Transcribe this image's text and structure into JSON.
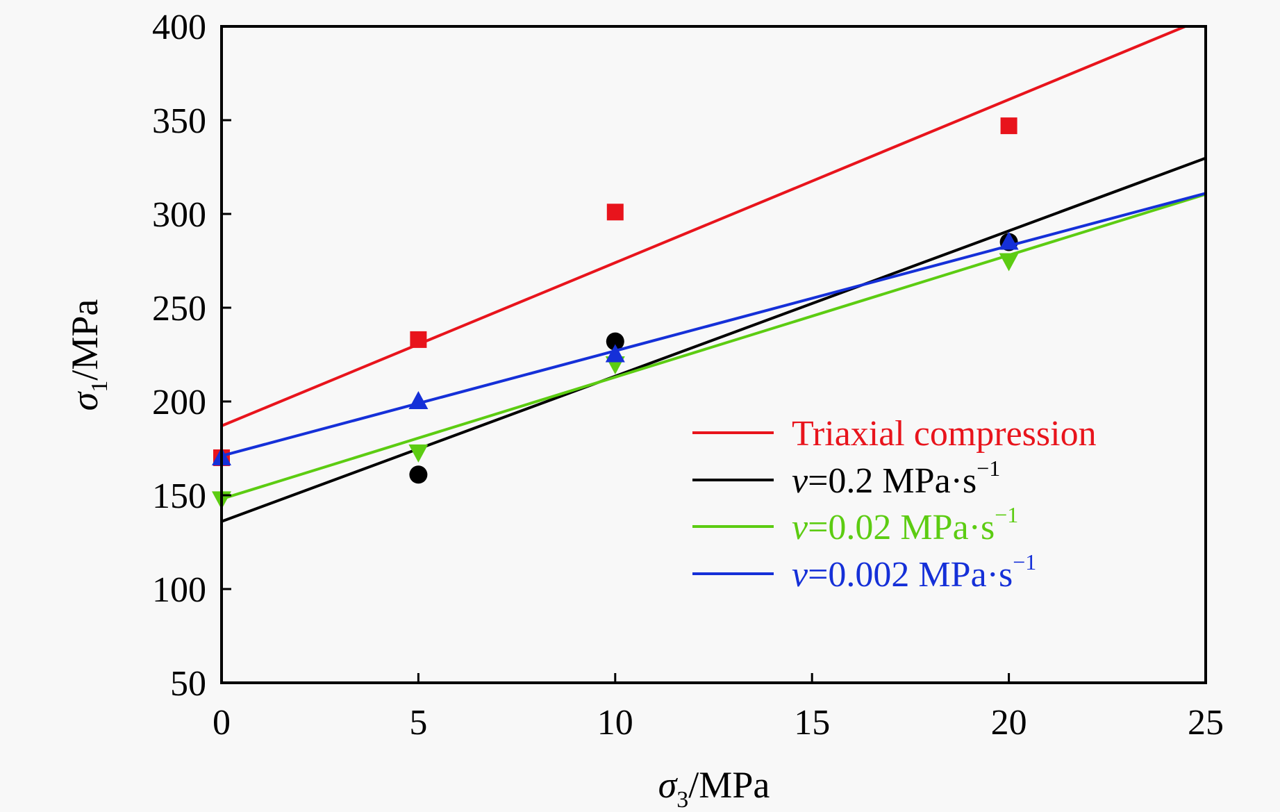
{
  "chart_data": {
    "type": "scatter",
    "title": "",
    "xlabel": {
      "symbol": "σ",
      "sub": "3",
      "unit": "/MPa"
    },
    "ylabel": {
      "symbol": "σ",
      "sub": "1",
      "unit": "/MPa"
    },
    "xlim": [
      0,
      25
    ],
    "ylim": [
      50,
      400
    ],
    "xticks": [
      0,
      5,
      10,
      15,
      20,
      25
    ],
    "yticks": [
      50,
      100,
      150,
      200,
      250,
      300,
      350,
      400
    ],
    "grid": false,
    "legend_position": "center-right",
    "series": [
      {
        "name": "Triaxial compression",
        "prefix": "",
        "value": "",
        "unit": "",
        "color": "#e8141c",
        "marker": "square",
        "x": [
          0,
          5,
          10,
          20
        ],
        "y": [
          170,
          233,
          301,
          347
        ],
        "fit": {
          "intercept": 187,
          "slope": 8.7
        }
      },
      {
        "name": "v=0.2 MPa·s⁻¹",
        "prefix": "v",
        "value": "=0.2 MPa·s",
        "unit": "−1",
        "color": "#000000",
        "marker": "circle",
        "x": [
          5,
          10,
          20
        ],
        "y": [
          161,
          232,
          285
        ],
        "fit": {
          "intercept": 136,
          "slope": 7.75
        }
      },
      {
        "name": "v=0.02 MPa·s⁻¹",
        "prefix": "v",
        "value": "=0.02 MPa·s",
        "unit": "−1",
        "color": "#5ccc12",
        "marker": "triangle-down",
        "x": [
          0,
          5,
          10,
          20
        ],
        "y": [
          148,
          173,
          220,
          275
        ],
        "fit": {
          "intercept": 148,
          "slope": 6.5
        }
      },
      {
        "name": "v=0.002 MPa·s⁻¹",
        "prefix": "v",
        "value": "=0.002 MPa·s",
        "unit": "−1",
        "color": "#1530d8",
        "marker": "triangle-up",
        "x": [
          0,
          5,
          10,
          20
        ],
        "y": [
          170,
          200,
          225,
          285
        ],
        "fit": {
          "intercept": 171,
          "slope": 5.6
        }
      }
    ]
  }
}
